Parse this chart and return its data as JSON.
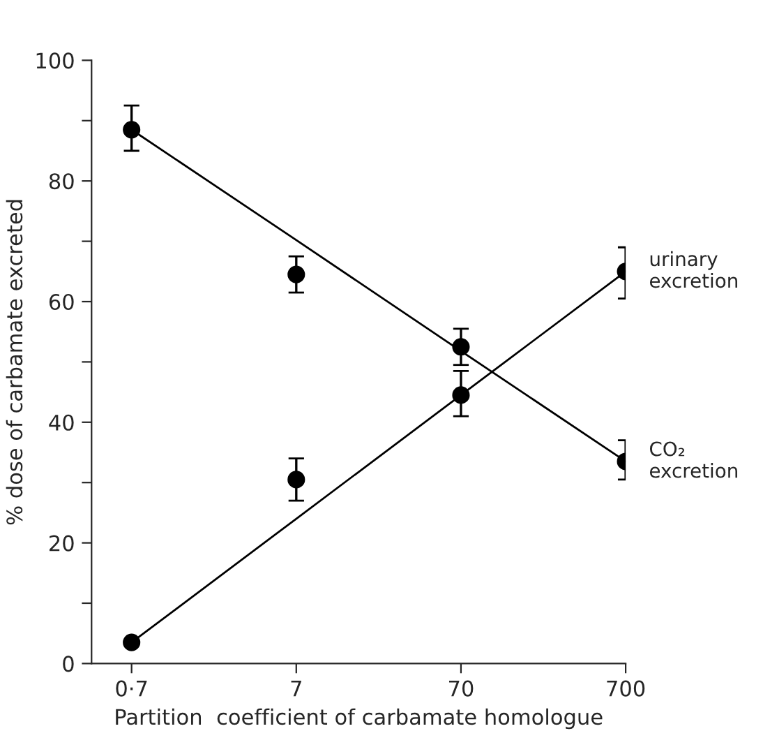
{
  "chart_data": {
    "type": "scatter",
    "xlabel": "Partition  coefficient of carbamate homologue",
    "ylabel": "% dose of carbamate excreted",
    "x": [
      0.7,
      7,
      70,
      700
    ],
    "log": "x",
    "xlim": [
      0.4,
      700
    ],
    "xticks": [
      {
        "value": 0.7,
        "label": "0·7"
      },
      7,
      70,
      700
    ],
    "ylim": [
      0,
      100
    ],
    "yticks": [
      0,
      {
        "value": 10,
        "label": null
      },
      20,
      {
        "value": 30,
        "label": null
      },
      40,
      {
        "value": 50,
        "label": null
      },
      60,
      {
        "value": 70,
        "label": null
      },
      80,
      {
        "value": 90,
        "label": null
      },
      100
    ],
    "grid": false,
    "legend": false,
    "marker": "circle",
    "series": [
      {
        "name": "CO₂\nexcretion",
        "color": "#000000",
        "values": [
          88.5,
          64.5,
          52.5,
          33.5
        ],
        "errors": [
          [
            85,
            92.5
          ],
          [
            61.5,
            67.5
          ],
          [
            49.5,
            55.5
          ],
          [
            30.5,
            37
          ]
        ]
      },
      {
        "name": "urinary\nexcretion",
        "color": "#000000",
        "values": [
          3.5,
          30.5,
          44.5,
          65
        ],
        "errors": [
          null,
          [
            27,
            34
          ],
          [
            41,
            48.5
          ],
          [
            60.5,
            69
          ]
        ]
      },
      {
        "type": "line",
        "color": "#000000",
        "values": [
          88.5,
          70.2,
          51.8,
          33.5
        ],
        "line_style": "solid",
        "marker": "none"
      },
      {
        "type": "line",
        "color": "#000000",
        "values": [
          3.5,
          24,
          44.5,
          65
        ],
        "line_style": "solid",
        "marker": "none"
      }
    ]
  }
}
